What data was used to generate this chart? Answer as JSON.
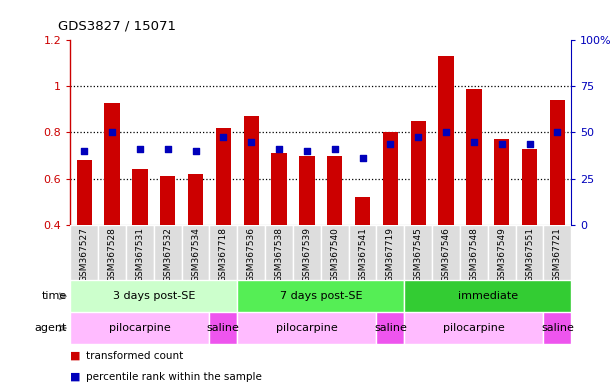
{
  "title": "GDS3827 / 15071",
  "samples": [
    "GSM367527",
    "GSM367528",
    "GSM367531",
    "GSM367532",
    "GSM367534",
    "GSM367718",
    "GSM367536",
    "GSM367538",
    "GSM367539",
    "GSM367540",
    "GSM367541",
    "GSM367719",
    "GSM367545",
    "GSM367546",
    "GSM367548",
    "GSM367549",
    "GSM367551",
    "GSM367721"
  ],
  "bar_values": [
    0.68,
    0.93,
    0.64,
    0.61,
    0.62,
    0.82,
    0.87,
    0.71,
    0.7,
    0.7,
    0.52,
    0.8,
    0.85,
    1.13,
    0.99,
    0.77,
    0.73,
    0.94
  ],
  "dot_values": [
    0.72,
    0.8,
    0.73,
    0.73,
    0.72,
    0.78,
    0.76,
    0.73,
    0.72,
    0.73,
    0.69,
    0.75,
    0.78,
    0.8,
    0.76,
    0.75,
    0.75,
    0.8
  ],
  "bar_color": "#cc0000",
  "dot_color": "#0000bb",
  "ylim_left": [
    0.4,
    1.2
  ],
  "ylim_right": [
    0,
    100
  ],
  "yticks_left": [
    0.4,
    0.6,
    0.8,
    1.0,
    1.2
  ],
  "yticks_right": [
    0,
    25,
    50,
    75,
    100
  ],
  "ytick_labels_left": [
    "0.4",
    "0.6",
    "0.8",
    "1",
    "1.2"
  ],
  "ytick_labels_right": [
    "0",
    "25",
    "50",
    "75",
    "100%"
  ],
  "hlines": [
    0.6,
    0.8,
    1.0
  ],
  "time_groups": [
    {
      "label": "3 days post-SE",
      "start": 0,
      "end": 5,
      "color": "#ccffcc"
    },
    {
      "label": "7 days post-SE",
      "start": 6,
      "end": 11,
      "color": "#55ee55"
    },
    {
      "label": "immediate",
      "start": 12,
      "end": 17,
      "color": "#33cc33"
    }
  ],
  "agent_groups": [
    {
      "label": "pilocarpine",
      "start": 0,
      "end": 4,
      "color": "#ffbbff"
    },
    {
      "label": "saline",
      "start": 5,
      "end": 5,
      "color": "#ee55ee"
    },
    {
      "label": "pilocarpine",
      "start": 6,
      "end": 10,
      "color": "#ffbbff"
    },
    {
      "label": "saline",
      "start": 11,
      "end": 11,
      "color": "#ee55ee"
    },
    {
      "label": "pilocarpine",
      "start": 12,
      "end": 16,
      "color": "#ffbbff"
    },
    {
      "label": "saline",
      "start": 17,
      "end": 17,
      "color": "#ee55ee"
    }
  ],
  "legend_items": [
    {
      "label": "transformed count",
      "color": "#cc0000"
    },
    {
      "label": "percentile rank within the sample",
      "color": "#0000bb"
    }
  ],
  "time_label": "time",
  "agent_label": "agent",
  "bar_bottom": 0.4,
  "xticklabel_bg": "#dddddd"
}
